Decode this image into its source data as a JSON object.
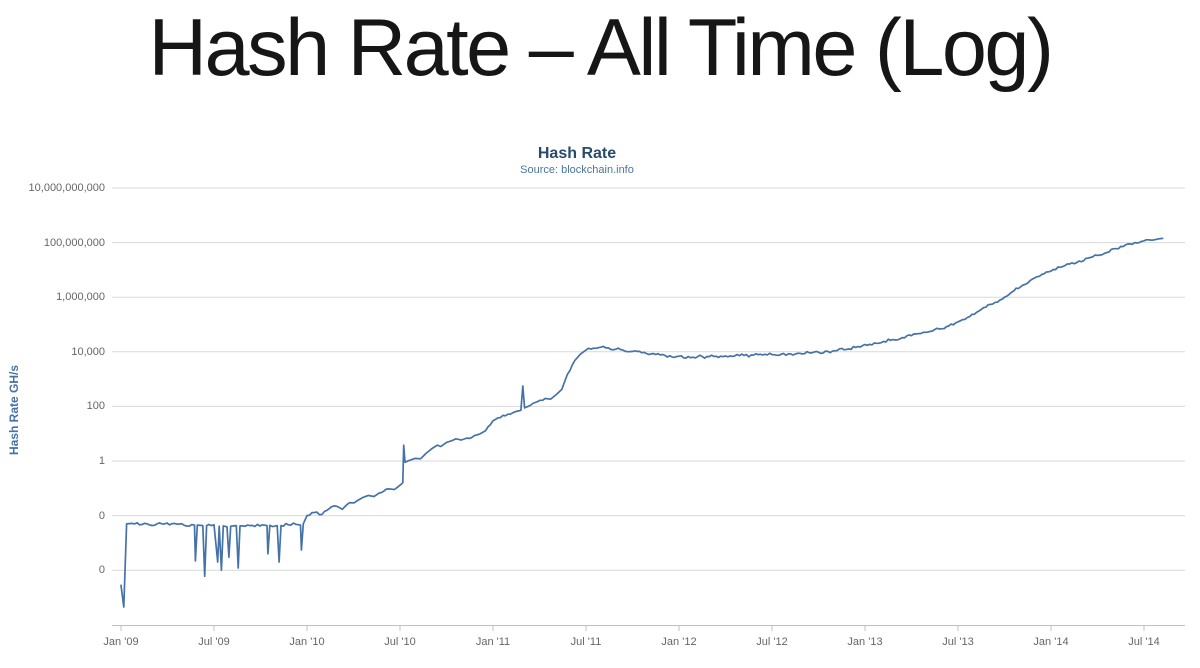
{
  "page": {
    "title": "Hash Rate – All Time (Log)"
  },
  "chart": {
    "title": "Hash Rate",
    "subtitle": "Source: blockchain.info",
    "y_axis_title": "Hash Rate GH/s"
  },
  "colors": {
    "line": "#4572a7",
    "chart_title": "#274b6d",
    "subtitle": "#4d759e",
    "axis_labels": "#666666",
    "grid": "#d9d9d9",
    "axis_line": "#c0c0c0",
    "y_axis_title": "#4572a7",
    "page_title": "#161616"
  },
  "chart_data": {
    "type": "line",
    "title": "Hash Rate",
    "subtitle": "Source: blockchain.info",
    "xlabel": "",
    "ylabel": "Hash Rate GH/s",
    "y_scale": "log",
    "units": "GH/s",
    "grid": "horizontal-only",
    "legend": "none",
    "line_color": "#4572a7",
    "x_tick_labels": [
      "Jan '09",
      "Jul '09",
      "Jan '10",
      "Jul '10",
      "Jan '11",
      "Jul '11",
      "Jan '12",
      "Jul '12",
      "Jan '13",
      "Jul '13",
      "Jan '14",
      "Jul '14"
    ],
    "x_tick_years": [
      2009.0,
      2009.5,
      2010.0,
      2010.5,
      2011.0,
      2011.5,
      2012.0,
      2012.5,
      2013.0,
      2013.5,
      2014.0,
      2014.5
    ],
    "y_tick_labels": [
      "10,000,000,000",
      "100,000,000",
      "1,000,000",
      "10,000",
      "100",
      "1",
      "0",
      "0"
    ],
    "y_tick_exponents": [
      10,
      8,
      6,
      4,
      2,
      0,
      -2,
      -4
    ],
    "ylim_log10": [
      -6,
      10
    ],
    "xlim_years": [
      2008.95,
      2014.72
    ],
    "noise_profile": [
      {
        "until": 2009.025,
        "amp": 0.0
      },
      {
        "until": 2010.0,
        "amp": 0.055
      },
      {
        "until": 2011.45,
        "amp": 0.045
      },
      {
        "until": 2013.05,
        "amp": 0.06
      },
      {
        "until": 2014.7,
        "amp": 0.05
      }
    ],
    "series": [
      {
        "name": "Hash Rate GH/s",
        "points": [
          [
            2009.0,
            2.8e-05
          ],
          [
            2009.015,
            4.5e-06
          ],
          [
            2009.03,
            0.005
          ],
          [
            2009.06,
            0.0052
          ],
          [
            2009.1,
            0.0046
          ],
          [
            2009.14,
            0.005
          ],
          [
            2009.18,
            0.0044
          ],
          [
            2009.22,
            0.005
          ],
          [
            2009.26,
            0.0046
          ],
          [
            2009.3,
            0.0049
          ],
          [
            2009.34,
            0.0044
          ],
          [
            2009.38,
            0.0047
          ],
          [
            2009.395,
            0.0045
          ],
          [
            2009.4,
            0.00022
          ],
          [
            2009.41,
            0.0045
          ],
          [
            2009.44,
            0.0043
          ],
          [
            2009.45,
            6e-05
          ],
          [
            2009.46,
            0.0043
          ],
          [
            2009.5,
            0.0046
          ],
          [
            2009.52,
            0.0002
          ],
          [
            2009.528,
            0.0041
          ],
          [
            2009.54,
            0.0001
          ],
          [
            2009.55,
            0.0042
          ],
          [
            2009.57,
            0.0039
          ],
          [
            2009.58,
            0.0003
          ],
          [
            2009.59,
            0.0041
          ],
          [
            2009.62,
            0.0043
          ],
          [
            2009.63,
            0.00012
          ],
          [
            2009.64,
            0.0042
          ],
          [
            2009.68,
            0.0045
          ],
          [
            2009.72,
            0.004
          ],
          [
            2009.76,
            0.0046
          ],
          [
            2009.785,
            0.0043
          ],
          [
            2009.79,
            0.0004
          ],
          [
            2009.8,
            0.0044
          ],
          [
            2009.84,
            0.0043
          ],
          [
            2009.85,
            0.0002
          ],
          [
            2009.86,
            0.0043
          ],
          [
            2009.9,
            0.0046
          ],
          [
            2009.94,
            0.0048
          ],
          [
            2009.965,
            0.0045
          ],
          [
            2009.97,
            0.00055
          ],
          [
            2009.98,
            0.005
          ],
          [
            2010.0,
            0.01
          ],
          [
            2010.04,
            0.013
          ],
          [
            2010.08,
            0.011
          ],
          [
            2010.12,
            0.018
          ],
          [
            2010.16,
            0.022
          ],
          [
            2010.19,
            0.017
          ],
          [
            2010.23,
            0.03
          ],
          [
            2010.27,
            0.035
          ],
          [
            2010.3,
            0.046
          ],
          [
            2010.33,
            0.055
          ],
          [
            2010.36,
            0.05
          ],
          [
            2010.4,
            0.07
          ],
          [
            2010.44,
            0.095
          ],
          [
            2010.47,
            0.09
          ],
          [
            2010.5,
            0.13
          ],
          [
            2010.515,
            0.16
          ],
          [
            2010.52,
            3.8
          ],
          [
            2010.527,
            0.9
          ],
          [
            2010.55,
            1.05
          ],
          [
            2010.58,
            1.25
          ],
          [
            2010.61,
            1.2
          ],
          [
            2010.64,
            1.9
          ],
          [
            2010.67,
            2.8
          ],
          [
            2010.7,
            3.8
          ],
          [
            2010.72,
            3.4
          ],
          [
            2010.75,
            4.8
          ],
          [
            2010.78,
            5.6
          ],
          [
            2010.8,
            6.5
          ],
          [
            2010.83,
            5.9
          ],
          [
            2010.86,
            6.9
          ],
          [
            2010.9,
            8.5
          ],
          [
            2010.93,
            9.8
          ],
          [
            2010.96,
            13
          ],
          [
            2011.0,
            30
          ],
          [
            2011.04,
            39
          ],
          [
            2011.08,
            52
          ],
          [
            2011.12,
            64
          ],
          [
            2011.15,
            72
          ],
          [
            2011.16,
            560
          ],
          [
            2011.17,
            88
          ],
          [
            2011.2,
            108
          ],
          [
            2011.24,
            150
          ],
          [
            2011.28,
            195
          ],
          [
            2011.31,
            185
          ],
          [
            2011.34,
            270
          ],
          [
            2011.37,
            420
          ],
          [
            2011.4,
            1500
          ],
          [
            2011.44,
            4800
          ],
          [
            2011.47,
            8200
          ],
          [
            2011.5,
            11500
          ],
          [
            2011.54,
            13600
          ],
          [
            2011.58,
            14700
          ],
          [
            2011.62,
            13900
          ],
          [
            2011.66,
            12400
          ],
          [
            2011.7,
            11400
          ],
          [
            2011.75,
            10300
          ],
          [
            2011.8,
            9300
          ],
          [
            2011.85,
            8400
          ],
          [
            2011.9,
            7700
          ],
          [
            2011.95,
            7200
          ],
          [
            2012.0,
            6900
          ],
          [
            2012.05,
            6700
          ],
          [
            2012.1,
            6600
          ],
          [
            2012.15,
            6700
          ],
          [
            2012.2,
            6850
          ],
          [
            2012.25,
            7000
          ],
          [
            2012.3,
            7100
          ],
          [
            2012.35,
            7300
          ],
          [
            2012.4,
            7500
          ],
          [
            2012.45,
            7700
          ],
          [
            2012.5,
            7900
          ],
          [
            2012.55,
            8150
          ],
          [
            2012.6,
            8400
          ],
          [
            2012.65,
            8800
          ],
          [
            2012.7,
            9200
          ],
          [
            2012.75,
            9700
          ],
          [
            2012.8,
            10300
          ],
          [
            2012.85,
            11100
          ],
          [
            2012.9,
            12200
          ],
          [
            2012.95,
            14500
          ],
          [
            2013.0,
            18500
          ],
          [
            2013.05,
            21000
          ],
          [
            2013.1,
            24000
          ],
          [
            2013.15,
            28000
          ],
          [
            2013.2,
            33000
          ],
          [
            2013.25,
            39000
          ],
          [
            2013.3,
            47000
          ],
          [
            2013.35,
            56000
          ],
          [
            2013.4,
            68000
          ],
          [
            2013.45,
            88000
          ],
          [
            2013.5,
            125000
          ],
          [
            2013.55,
            180000
          ],
          [
            2013.6,
            280000
          ],
          [
            2013.65,
            430000
          ],
          [
            2013.7,
            650000
          ],
          [
            2013.75,
            1000000
          ],
          [
            2013.8,
            1700000
          ],
          [
            2013.85,
            2800000
          ],
          [
            2013.9,
            4600000
          ],
          [
            2013.95,
            6800000
          ],
          [
            2014.0,
            9000000
          ],
          [
            2014.05,
            12500000
          ],
          [
            2014.1,
            16500000
          ],
          [
            2014.15,
            21000000
          ],
          [
            2014.2,
            27000000
          ],
          [
            2014.25,
            34000000
          ],
          [
            2014.3,
            43000000
          ],
          [
            2014.35,
            60000000
          ],
          [
            2014.4,
            82000000
          ],
          [
            2014.45,
            100000000
          ],
          [
            2014.5,
            115000000
          ],
          [
            2014.55,
            125000000
          ],
          [
            2014.58,
            138000000
          ],
          [
            2014.6,
            142000000
          ]
        ]
      }
    ]
  }
}
